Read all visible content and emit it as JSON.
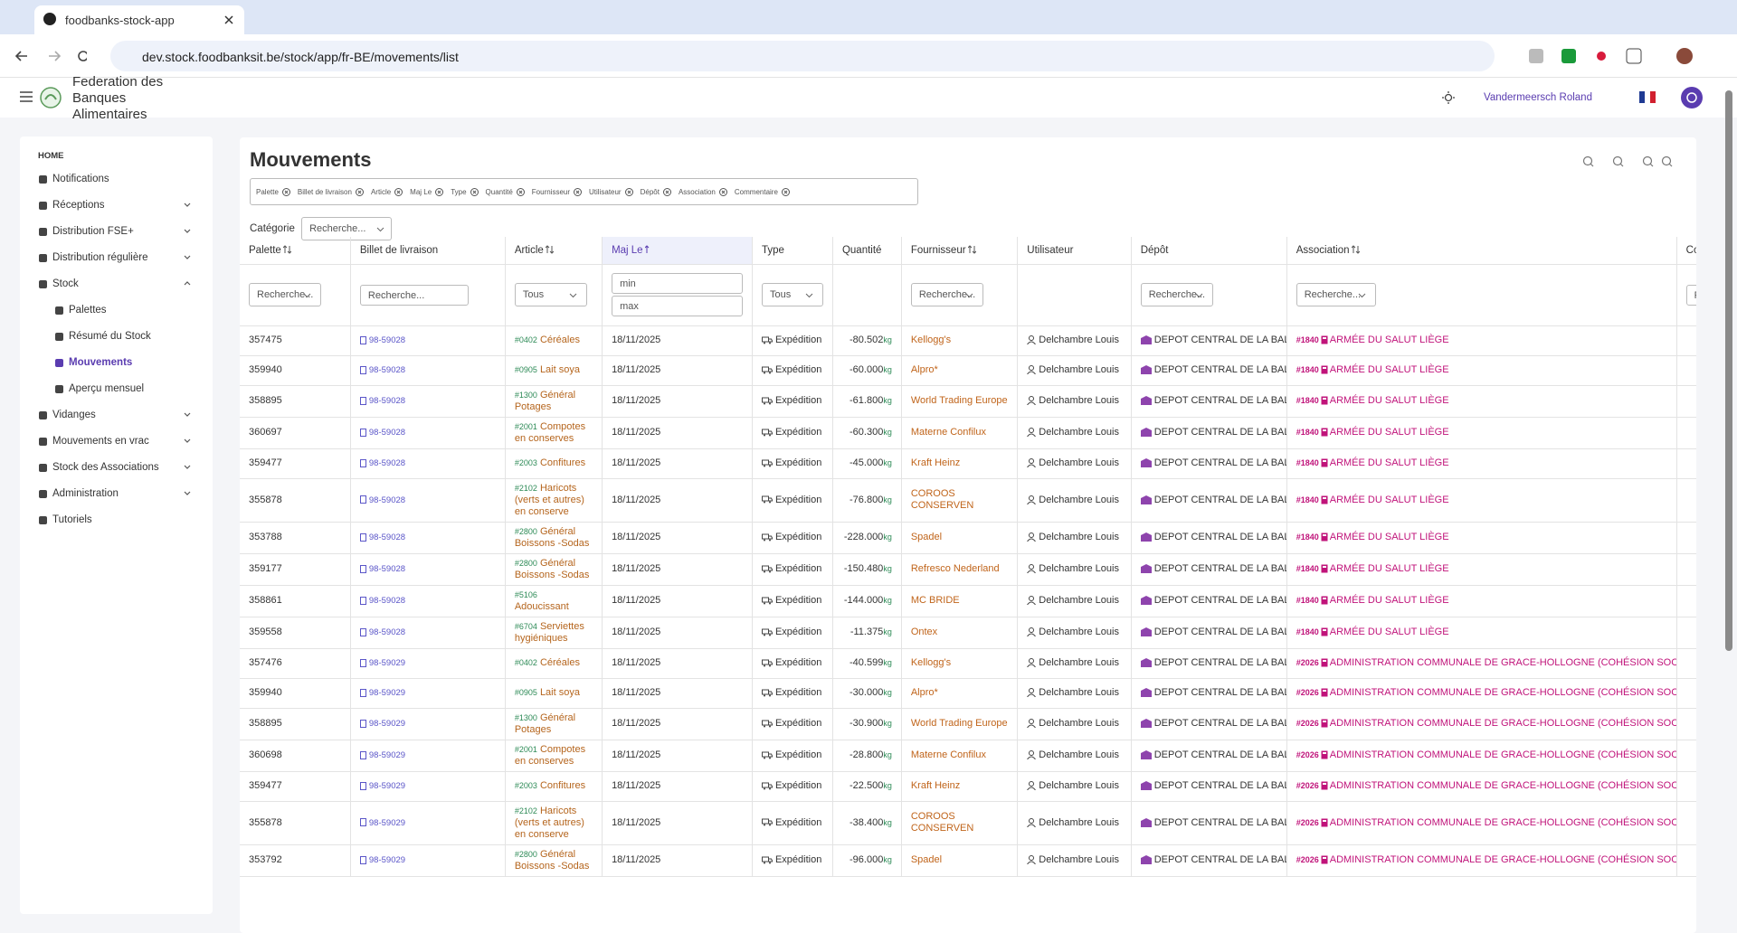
{
  "browser": {
    "tab_title": "foodbanks-stock-app",
    "url": "dev.stock.foodbanksit.be/stock/app/fr-BE/movements/list"
  },
  "header": {
    "org_name": "Federation des Banques Alimentaires",
    "user_name": "Vandermeersch Roland"
  },
  "sidebar": {
    "section": "HOME",
    "items": [
      {
        "label": "Notifications"
      },
      {
        "label": "Réceptions",
        "expandable": true
      },
      {
        "label": "Distribution FSE+",
        "expandable": true
      },
      {
        "label": "Distribution régulière",
        "expandable": true
      },
      {
        "label": "Stock",
        "expandable": true,
        "expanded": true,
        "children": [
          {
            "label": "Palettes"
          },
          {
            "label": "Résumé du Stock"
          },
          {
            "label": "Mouvements",
            "active": true
          },
          {
            "label": "Aperçu mensuel"
          }
        ]
      },
      {
        "label": "Vidanges",
        "expandable": true
      },
      {
        "label": "Mouvements en vrac",
        "expandable": true
      },
      {
        "label": "Stock des Associations",
        "expandable": true
      },
      {
        "label": "Administration",
        "expandable": true
      },
      {
        "label": "Tutoriels"
      }
    ]
  },
  "page": {
    "title": "Mouvements",
    "column_chips": [
      "Palette",
      "Billet de livraison",
      "Article",
      "Maj Le",
      "Type",
      "Quantité",
      "Fournisseur",
      "Utilisateur",
      "Dépôt",
      "Association",
      "Commentaire"
    ],
    "category_label": "Catégorie",
    "category_placeholder": "Recherche..."
  },
  "table": {
    "quantity_unit": "kg",
    "columns": [
      {
        "label": "Palette",
        "sortable": true
      },
      {
        "label": "Billet de livraison"
      },
      {
        "label": "Article",
        "sortable": true
      },
      {
        "label": "Maj Le",
        "sortable": true,
        "sorted": "desc"
      },
      {
        "label": "Type"
      },
      {
        "label": "Quantité"
      },
      {
        "label": "Fournisseur",
        "sortable": true
      },
      {
        "label": "Utilisateur"
      },
      {
        "label": "Dépôt"
      },
      {
        "label": "Association",
        "sortable": true
      },
      {
        "label": "Commentaire"
      }
    ],
    "filters": [
      "Recherche...",
      "Recherche...",
      "Tous",
      [
        "min",
        "max"
      ],
      "Tous",
      null,
      "Recherche...",
      null,
      "Recherche...",
      "Recherche...",
      "Recherche..."
    ],
    "rows": [
      {
        "palette": "357475",
        "bl": "98-59028",
        "article_code": "#0402",
        "article": "Céréales",
        "date": "18/11/2025",
        "type": "Expédition",
        "quantity": "-80.502",
        "supplier": "Kellogg's",
        "user": "Delchambre Louis",
        "depot": "DEPOT CENTRAL DE LA BAL",
        "assoc_code": "#1840",
        "association": "ARMÉE DU SALUT LIÈGE"
      },
      {
        "palette": "359940",
        "bl": "98-59028",
        "article_code": "#0905",
        "article": "Lait soya",
        "date": "18/11/2025",
        "type": "Expédition",
        "quantity": "-60.000",
        "supplier": "Alpro*",
        "user": "Delchambre Louis",
        "depot": "DEPOT CENTRAL DE LA BAL",
        "assoc_code": "#1840",
        "association": "ARMÉE DU SALUT LIÈGE"
      },
      {
        "palette": "358895",
        "bl": "98-59028",
        "article_code": "#1300",
        "article": "Général Potages",
        "date": "18/11/2025",
        "type": "Expédition",
        "quantity": "-61.800",
        "supplier": "World Trading Europe",
        "user": "Delchambre Louis",
        "depot": "DEPOT CENTRAL DE LA BAL",
        "assoc_code": "#1840",
        "association": "ARMÉE DU SALUT LIÈGE"
      },
      {
        "palette": "360697",
        "bl": "98-59028",
        "article_code": "#2001",
        "article": "Compotes en conserves",
        "date": "18/11/2025",
        "type": "Expédition",
        "quantity": "-60.300",
        "supplier": "Materne Confilux",
        "user": "Delchambre Louis",
        "depot": "DEPOT CENTRAL DE LA BAL",
        "assoc_code": "#1840",
        "association": "ARMÉE DU SALUT LIÈGE"
      },
      {
        "palette": "359477",
        "bl": "98-59028",
        "article_code": "#2003",
        "article": "Confitures",
        "date": "18/11/2025",
        "type": "Expédition",
        "quantity": "-45.000",
        "supplier": "Kraft Heinz",
        "user": "Delchambre Louis",
        "depot": "DEPOT CENTRAL DE LA BAL",
        "assoc_code": "#1840",
        "association": "ARMÉE DU SALUT LIÈGE"
      },
      {
        "palette": "355878",
        "bl": "98-59028",
        "article_code": "#2102",
        "article": "Haricots (verts et autres) en conserve",
        "date": "18/11/2025",
        "type": "Expédition",
        "quantity": "-76.800",
        "supplier": "COROOS CONSERVEN",
        "user": "Delchambre Louis",
        "depot": "DEPOT CENTRAL DE LA BAL",
        "assoc_code": "#1840",
        "association": "ARMÉE DU SALUT LIÈGE"
      },
      {
        "palette": "353788",
        "bl": "98-59028",
        "article_code": "#2800",
        "article": "Général Boissons -Sodas",
        "date": "18/11/2025",
        "type": "Expédition",
        "quantity": "-228.000",
        "supplier": "Spadel",
        "user": "Delchambre Louis",
        "depot": "DEPOT CENTRAL DE LA BAL",
        "assoc_code": "#1840",
        "association": "ARMÉE DU SALUT LIÈGE"
      },
      {
        "palette": "359177",
        "bl": "98-59028",
        "article_code": "#2800",
        "article": "Général Boissons -Sodas",
        "date": "18/11/2025",
        "type": "Expédition",
        "quantity": "-150.480",
        "supplier": "Refresco Nederland",
        "user": "Delchambre Louis",
        "depot": "DEPOT CENTRAL DE LA BAL",
        "assoc_code": "#1840",
        "association": "ARMÉE DU SALUT LIÈGE"
      },
      {
        "palette": "358861",
        "bl": "98-59028",
        "article_code": "#5106",
        "article": "Adoucissant",
        "date": "18/11/2025",
        "type": "Expédition",
        "quantity": "-144.000",
        "supplier": "MC BRIDE",
        "user": "Delchambre Louis",
        "depot": "DEPOT CENTRAL DE LA BAL",
        "assoc_code": "#1840",
        "association": "ARMÉE DU SALUT LIÈGE"
      },
      {
        "palette": "359558",
        "bl": "98-59028",
        "article_code": "#6704",
        "article": "Serviettes hygiéniques",
        "date": "18/11/2025",
        "type": "Expédition",
        "quantity": "-11.375",
        "supplier": "Ontex",
        "user": "Delchambre Louis",
        "depot": "DEPOT CENTRAL DE LA BAL",
        "assoc_code": "#1840",
        "association": "ARMÉE DU SALUT LIÈGE"
      },
      {
        "palette": "357476",
        "bl": "98-59029",
        "article_code": "#0402",
        "article": "Céréales",
        "date": "18/11/2025",
        "type": "Expédition",
        "quantity": "-40.599",
        "supplier": "Kellogg's",
        "user": "Delchambre Louis",
        "depot": "DEPOT CENTRAL DE LA BAL",
        "assoc_code": "#2026",
        "association": "ADMINISTRATION COMMUNALE DE GRACE-HOLLOGNE (COHÉSION SOCIALE)"
      },
      {
        "palette": "359940",
        "bl": "98-59029",
        "article_code": "#0905",
        "article": "Lait soya",
        "date": "18/11/2025",
        "type": "Expédition",
        "quantity": "-30.000",
        "supplier": "Alpro*",
        "user": "Delchambre Louis",
        "depot": "DEPOT CENTRAL DE LA BAL",
        "assoc_code": "#2026",
        "association": "ADMINISTRATION COMMUNALE DE GRACE-HOLLOGNE (COHÉSION SOCIALE)"
      },
      {
        "palette": "358895",
        "bl": "98-59029",
        "article_code": "#1300",
        "article": "Général Potages",
        "date": "18/11/2025",
        "type": "Expédition",
        "quantity": "-30.900",
        "supplier": "World Trading Europe",
        "user": "Delchambre Louis",
        "depot": "DEPOT CENTRAL DE LA BAL",
        "assoc_code": "#2026",
        "association": "ADMINISTRATION COMMUNALE DE GRACE-HOLLOGNE (COHÉSION SOCIALE)"
      },
      {
        "palette": "360698",
        "bl": "98-59029",
        "article_code": "#2001",
        "article": "Compotes en conserves",
        "date": "18/11/2025",
        "type": "Expédition",
        "quantity": "-28.800",
        "supplier": "Materne Confilux",
        "user": "Delchambre Louis",
        "depot": "DEPOT CENTRAL DE LA BAL",
        "assoc_code": "#2026",
        "association": "ADMINISTRATION COMMUNALE DE GRACE-HOLLOGNE (COHÉSION SOCIALE)"
      },
      {
        "palette": "359477",
        "bl": "98-59029",
        "article_code": "#2003",
        "article": "Confitures",
        "date": "18/11/2025",
        "type": "Expédition",
        "quantity": "-22.500",
        "supplier": "Kraft Heinz",
        "user": "Delchambre Louis",
        "depot": "DEPOT CENTRAL DE LA BAL",
        "assoc_code": "#2026",
        "association": "ADMINISTRATION COMMUNALE DE GRACE-HOLLOGNE (COHÉSION SOCIALE)"
      },
      {
        "palette": "355878",
        "bl": "98-59029",
        "article_code": "#2102",
        "article": "Haricots (verts et autres) en conserve",
        "date": "18/11/2025",
        "type": "Expédition",
        "quantity": "-38.400",
        "supplier": "COROOS CONSERVEN",
        "user": "Delchambre Louis",
        "depot": "DEPOT CENTRAL DE LA BAL",
        "assoc_code": "#2026",
        "association": "ADMINISTRATION COMMUNALE DE GRACE-HOLLOGNE (COHÉSION SOCIALE)"
      },
      {
        "palette": "353792",
        "bl": "98-59029",
        "article_code": "#2800",
        "article": "Général Boissons -Sodas",
        "date": "18/11/2025",
        "type": "Expédition",
        "quantity": "-96.000",
        "supplier": "Spadel",
        "user": "Delchambre Louis",
        "depot": "DEPOT CENTRAL DE LA BAL",
        "assoc_code": "#2026",
        "association": "ADMINISTRATION COMMUNALE DE GRACE-HOLLOGNE (COHÉSION SOCIALE)"
      }
    ]
  }
}
